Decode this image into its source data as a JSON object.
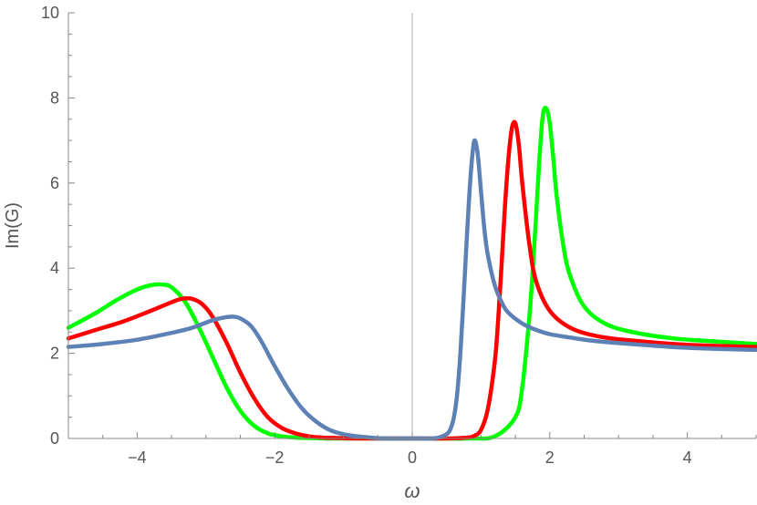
{
  "chart_data": {
    "type": "line",
    "title": "",
    "xlabel": "ω",
    "ylabel": "Im(G)",
    "xlim": [
      -5,
      5
    ],
    "ylim": [
      0,
      10
    ],
    "x_ticks": [
      -4,
      -2,
      0,
      2,
      4
    ],
    "x_tick_labels": [
      "−4",
      "−2",
      "0",
      "2",
      "4"
    ],
    "y_ticks": [
      0,
      2,
      4,
      6,
      8,
      10
    ],
    "y_tick_labels": [
      "0",
      "2",
      "4",
      "6",
      "8",
      "10"
    ],
    "grid": false,
    "legend": "none",
    "series": [
      {
        "color": "#00ff00",
        "x": [
          -5,
          -4.6,
          -4.3,
          -4.0,
          -3.8,
          -3.65,
          -3.5,
          -3.3,
          -3.1,
          -2.9,
          -2.7,
          -2.5,
          -2.3,
          -2.1,
          -1.9,
          -1.7,
          -1.5,
          -1.2,
          -0.8,
          0,
          0.8,
          1.2,
          1.5,
          1.6,
          1.7,
          1.75,
          1.8,
          1.85,
          1.9,
          1.95,
          2.0,
          2.05,
          2.1,
          2.2,
          2.3,
          2.5,
          2.8,
          3.2,
          3.8,
          4.4,
          5.0
        ],
        "y": [
          2.6,
          2.95,
          3.25,
          3.5,
          3.6,
          3.62,
          3.55,
          3.2,
          2.6,
          1.9,
          1.2,
          0.65,
          0.3,
          0.12,
          0.05,
          0.02,
          0.01,
          0,
          0,
          0,
          0,
          0.05,
          0.5,
          1.2,
          2.8,
          3.9,
          5.2,
          6.6,
          7.6,
          7.75,
          7.4,
          6.6,
          5.7,
          4.5,
          3.8,
          3.1,
          2.7,
          2.5,
          2.35,
          2.28,
          2.22
        ]
      },
      {
        "color": "#ff0000",
        "x": [
          -5,
          -4.6,
          -4.2,
          -3.8,
          -3.5,
          -3.35,
          -3.2,
          -3.05,
          -2.9,
          -2.7,
          -2.5,
          -2.3,
          -2.1,
          -1.9,
          -1.7,
          -1.5,
          -1.3,
          -1.1,
          -0.8,
          0,
          0.5,
          0.8,
          0.9,
          1.0,
          1.1,
          1.2,
          1.25,
          1.3,
          1.35,
          1.4,
          1.45,
          1.5,
          1.55,
          1.6,
          1.7,
          1.8,
          2.0,
          2.3,
          2.7,
          3.2,
          4.0,
          5.0
        ],
        "y": [
          2.35,
          2.55,
          2.75,
          3.0,
          3.2,
          3.28,
          3.28,
          3.15,
          2.85,
          2.25,
          1.55,
          0.95,
          0.5,
          0.25,
          0.12,
          0.05,
          0.02,
          0.01,
          0,
          0,
          0,
          0.02,
          0.06,
          0.2,
          0.7,
          1.8,
          2.8,
          4.1,
          5.5,
          6.6,
          7.3,
          7.4,
          6.9,
          6.0,
          4.6,
          3.7,
          3.0,
          2.6,
          2.4,
          2.3,
          2.2,
          2.15
        ]
      },
      {
        "color": "#5e81b5",
        "x": [
          -5,
          -4.5,
          -4.0,
          -3.5,
          -3.2,
          -2.9,
          -2.7,
          -2.6,
          -2.5,
          -2.35,
          -2.2,
          -2.0,
          -1.8,
          -1.6,
          -1.4,
          -1.2,
          -1.0,
          -0.8,
          -0.6,
          -0.4,
          0,
          0.3,
          0.4,
          0.5,
          0.55,
          0.6,
          0.65,
          0.7,
          0.75,
          0.8,
          0.85,
          0.9,
          0.95,
          1.0,
          1.05,
          1.1,
          1.2,
          1.3,
          1.4,
          1.6,
          1.8,
          2.0,
          2.3,
          2.6,
          3.0,
          3.5,
          4.0,
          4.5,
          5.0
        ],
        "y": [
          2.15,
          2.22,
          2.32,
          2.48,
          2.6,
          2.78,
          2.85,
          2.86,
          2.82,
          2.65,
          2.3,
          1.7,
          1.15,
          0.7,
          0.4,
          0.2,
          0.1,
          0.05,
          0.02,
          0,
          0,
          0,
          0.03,
          0.1,
          0.2,
          0.45,
          1.0,
          2.0,
          3.4,
          4.9,
          6.2,
          6.98,
          6.7,
          5.8,
          4.9,
          4.3,
          3.6,
          3.2,
          2.95,
          2.7,
          2.55,
          2.45,
          2.37,
          2.3,
          2.24,
          2.18,
          2.13,
          2.1,
          2.08
        ]
      }
    ]
  }
}
